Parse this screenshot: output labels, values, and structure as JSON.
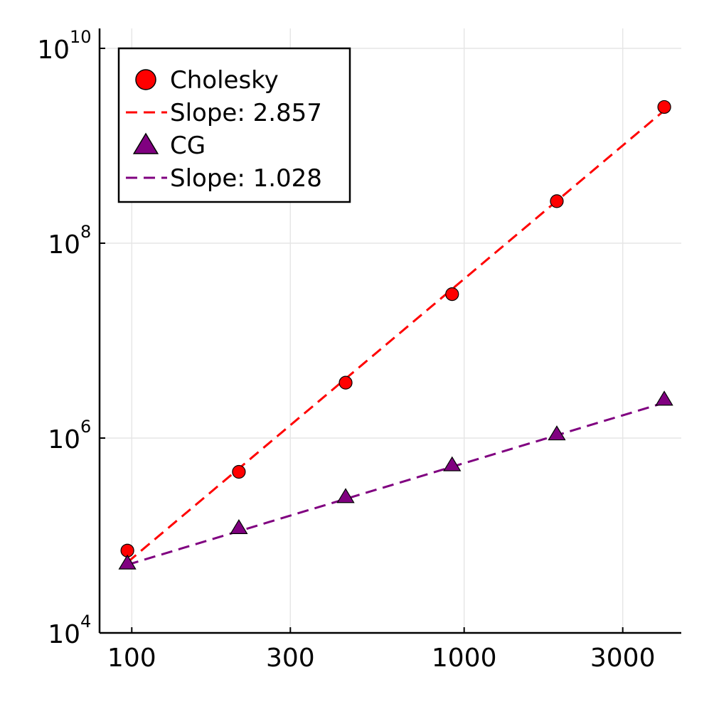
{
  "chart_data": {
    "type": "scatter",
    "title": "",
    "xlabel": "",
    "ylabel": "",
    "xscale": "log",
    "yscale": "log",
    "xlim": [
      80,
      4500
    ],
    "ylim": [
      10000,
      16000000000
    ],
    "grid": true,
    "legend_position": "top-left",
    "x_ticks": [
      {
        "value": 100,
        "label": "100"
      },
      {
        "value": 300,
        "label": "300"
      },
      {
        "value": 1000,
        "label": "1000"
      },
      {
        "value": 3000,
        "label": "3000"
      }
    ],
    "y_ticks": [
      {
        "value": 10000,
        "base": "10",
        "exp": "4"
      },
      {
        "value": 1000000,
        "base": "10",
        "exp": "6"
      },
      {
        "value": 100000000,
        "base": "10",
        "exp": "8"
      },
      {
        "value": 10000000000,
        "base": "10",
        "exp": "10"
      }
    ],
    "series": [
      {
        "name": "Cholesky",
        "marker": "circle",
        "color": "#ff0000",
        "x": [
          97,
          210,
          440,
          920,
          1900,
          4000
        ],
        "y": [
          70000,
          450000,
          3700000,
          30000000,
          270000000,
          2500000000
        ]
      },
      {
        "name": "Slope: 2.857",
        "marker": "dashed-line",
        "color": "#ff0000",
        "x": [
          97,
          4000
        ],
        "y": [
          53000,
          2300000000
        ]
      },
      {
        "name": "CG",
        "marker": "triangle",
        "color": "#800080",
        "x": [
          97,
          210,
          440,
          920,
          1900,
          4000
        ],
        "y": [
          52000,
          120000,
          250000,
          530000,
          1100000,
          2500000
        ]
      },
      {
        "name": "Slope: 1.028",
        "marker": "dashed-line",
        "color": "#800080",
        "x": [
          97,
          4000
        ],
        "y": [
          50000,
          2300000
        ]
      }
    ]
  }
}
